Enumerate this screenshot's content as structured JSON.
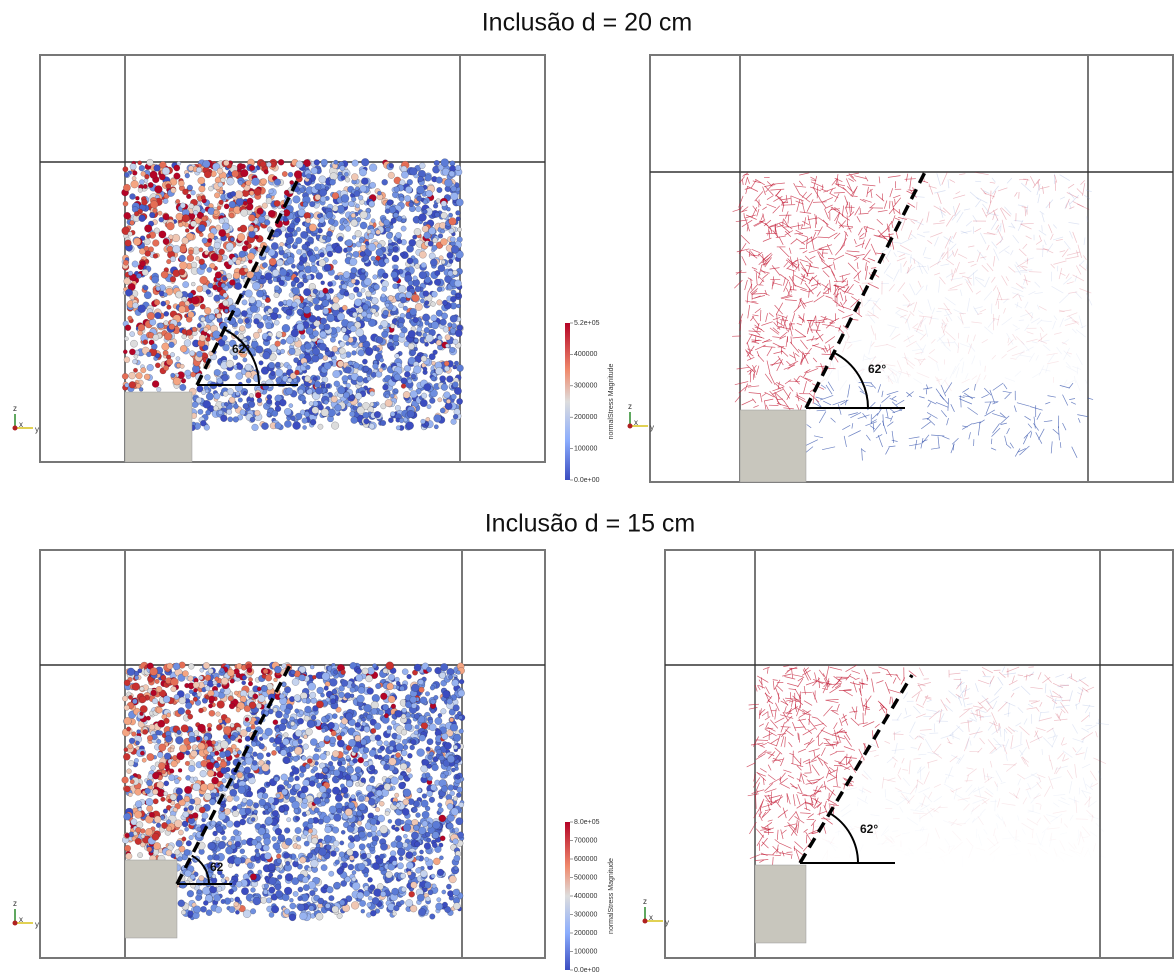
{
  "figure": {
    "axes_triad": [
      "z",
      "x",
      "y"
    ],
    "panels": [
      {
        "title": "Inclusão d = 20 cm",
        "views": [
          {
            "angle_label": "62°",
            "colorbar": {
              "label": "normalStress Magnitude",
              "ticks": [
                "5.2e+05",
                "400000",
                "300000",
                "200000",
                "100000",
                "0.0e+00"
              ]
            }
          },
          {
            "angle_label": "62°"
          }
        ]
      },
      {
        "title": "Inclusão d = 15 cm",
        "views": [
          {
            "angle_label": "62",
            "colorbar": {
              "label": "normalStress Magnitude",
              "ticks": [
                "8.0e+05",
                "700000",
                "600000",
                "500000",
                "400000",
                "300000",
                "200000",
                "100000",
                "0.0e+00"
              ]
            }
          },
          {
            "angle_label": "62°"
          }
        ]
      }
    ]
  }
}
